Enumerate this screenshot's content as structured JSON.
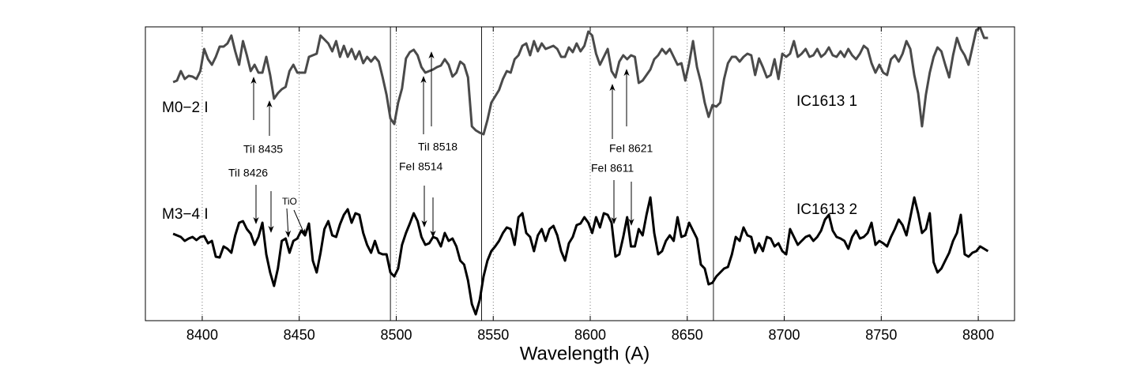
{
  "chart_data": {
    "type": "line",
    "xlabel": "Wavelength (A)",
    "xlim": [
      8370.7,
      8818.7
    ],
    "xticks": [
      8400,
      8450,
      8500,
      8550,
      8600,
      8650,
      8700,
      8750,
      8800
    ],
    "ylim": [
      0,
      372
    ],
    "grid": true,
    "reference_lines": [
      8497,
      8544,
      8663.5
    ],
    "annotations": [
      "M0−2 I",
      "M3−4 I",
      "IC1613 1",
      "IC1613 2",
      "TiI 8435",
      "TiI 8426",
      "TiO",
      "TiI 8518",
      "FeI 8514",
      "FeI 8621",
      "FeI 8611"
    ],
    "x": [
      8385,
      8387,
      8389,
      8391,
      8393,
      8395,
      8397,
      8399,
      8401,
      8403,
      8405,
      8407,
      8409,
      8411,
      8413,
      8415,
      8417,
      8419,
      8421,
      8423,
      8425,
      8427,
      8429,
      8431,
      8433,
      8435,
      8437,
      8439,
      8441,
      8443,
      8445,
      8447,
      8449,
      8451,
      8453,
      8455,
      8457,
      8459,
      8461,
      8463,
      8465,
      8467,
      8469,
      8471,
      8473,
      8475,
      8477,
      8479,
      8481,
      8483,
      8485,
      8487,
      8489,
      8491,
      8493,
      8495,
      8497,
      8499,
      8501,
      8503,
      8505,
      8507,
      8509,
      8511,
      8513,
      8515,
      8517,
      8519,
      8521,
      8523,
      8525,
      8527,
      8529,
      8531,
      8533,
      8535,
      8537,
      8539,
      8541,
      8543,
      8545,
      8547,
      8549,
      8551,
      8553,
      8555,
      8557,
      8559,
      8561,
      8563,
      8565,
      8567,
      8569,
      8571,
      8573,
      8575,
      8577,
      8579,
      8581,
      8583,
      8585,
      8587,
      8589,
      8591,
      8593,
      8595,
      8597,
      8599,
      8601,
      8603,
      8605,
      8607,
      8609,
      8611,
      8613,
      8615,
      8617,
      8619,
      8621,
      8623,
      8625,
      8627,
      8629,
      8631,
      8633,
      8635,
      8637,
      8639,
      8641,
      8643,
      8645,
      8647,
      8649,
      8651,
      8653,
      8655,
      8657,
      8659,
      8661,
      8663,
      8665,
      8667,
      8669,
      8671,
      8673,
      8675,
      8677,
      8679,
      8681,
      8683,
      8685,
      8687,
      8689,
      8691,
      8693,
      8695,
      8697,
      8699,
      8701,
      8703,
      8705,
      8707,
      8709,
      8711,
      8713,
      8715,
      8717,
      8719,
      8721,
      8723,
      8725,
      8727,
      8729,
      8731,
      8733,
      8735,
      8737,
      8739,
      8741,
      8743,
      8745,
      8747,
      8749,
      8751,
      8753,
      8755,
      8757,
      8759,
      8761,
      8763,
      8765,
      8767,
      8769,
      8771,
      8773,
      8775,
      8777,
      8779,
      8781,
      8783,
      8785,
      8787,
      8789,
      8791,
      8793,
      8795,
      8797,
      8799,
      8801,
      8803,
      8805
    ],
    "series": [
      {
        "color": "#4a4a4a",
        "values": [
          302,
          304,
          316,
          306,
          310,
          309,
          306,
          316,
          344,
          331,
          324,
          334,
          347,
          347,
          351,
          361,
          341,
          324,
          354,
          336,
          316,
          324,
          314,
          314,
          334,
          311,
          281,
          288,
          293,
          296,
          316,
          324,
          314,
          314,
          314,
          334,
          336,
          338,
          361,
          356,
          351,
          341,
          354,
          334,
          348,
          334,
          344,
          331,
          341,
          326,
          334,
          328,
          334,
          328,
          308,
          286,
          256,
          249,
          276,
          294,
          332,
          340,
          343,
          336,
          321,
          314,
          316,
          318,
          321,
          323,
          331,
          324,
          309,
          314,
          328,
          324,
          308,
          246,
          241,
          238,
          236,
          254,
          276,
          284,
          292,
          306,
          316,
          314,
          331,
          336,
          348,
          351,
          336,
          354,
          341,
          351,
          344,
          346,
          348,
          344,
          334,
          334,
          346,
          340,
          351,
          341,
          348,
          366,
          361,
          338,
          324,
          334,
          344,
          316,
          308,
          328,
          336,
          331,
          336,
          334,
          301,
          304,
          311,
          318,
          331,
          336,
          344,
          338,
          344,
          334,
          324,
          326,
          304,
          326,
          354,
          321,
          302,
          276,
          258,
          273,
          271,
          276,
          306,
          326,
          334,
          334,
          328,
          334,
          338,
          336,
          311,
          332,
          321,
          308,
          311,
          331,
          306,
          338,
          334,
          338,
          354,
          334,
          338,
          344,
          334,
          336,
          344,
          334,
          338,
          346,
          336,
          334,
          341,
          334,
          344,
          336,
          331,
          338,
          348,
          344,
          326,
          314,
          324,
          314,
          311,
          331,
          336,
          328,
          338,
          354,
          344,
          311,
          288,
          246,
          286,
          314,
          334,
          346,
          341,
          324,
          308,
          336,
          358,
          344,
          336,
          324,
          346,
          368,
          371,
          358,
          358
        ]
      },
      {
        "color": "#000000",
        "values": [
          110,
          108,
          106,
          101,
          104,
          106,
          102,
          106,
          107,
          98,
          101,
          81,
          80,
          94,
          91,
          86,
          108,
          124,
          126,
          116,
          110,
          96,
          106,
          124,
          84,
          61,
          44,
          66,
          101,
          104,
          86,
          101,
          104,
          114,
          108,
          123,
          76,
          61,
          86,
          116,
          126,
          108,
          106,
          122,
          134,
          141,
          124,
          136,
          134,
          111,
          96,
          86,
          101,
          86,
          84,
          84,
          61,
          56,
          66,
          96,
          111,
          123,
          136,
          126,
          106,
          96,
          98,
          106,
          104,
          94,
          111,
          101,
          104,
          94,
          76,
          71,
          51,
          21,
          8,
          26,
          56,
          76,
          88,
          94,
          101,
          111,
          118,
          116,
          96,
          131,
          136,
          111,
          106,
          88,
          108,
          116,
          101,
          116,
          120,
          108,
          88,
          76,
          98,
          106,
          121,
          123,
          131,
          124,
          111,
          131,
          118,
          136,
          134,
          124,
          81,
          84,
          106,
          131,
          94,
          94,
          116,
          108,
          134,
          156,
          111,
          84,
          88,
          101,
          108,
          101,
          131,
          106,
          108,
          124,
          114,
          104,
          71,
          66,
          46,
          48,
          56,
          61,
          66,
          68,
          84,
          106,
          101,
          118,
          108,
          106,
          86,
          98,
          88,
          106,
          104,
          94,
          98,
          88,
          84,
          116,
          106,
          96,
          101,
          106,
          108,
          101,
          106,
          114,
          128,
          134,
          114,
          106,
          104,
          101,
          91,
          106,
          114,
          104,
          106,
          111,
          124,
          96,
          101,
          98,
          94,
          106,
          116,
          128,
          121,
          108,
          131,
          156,
          136,
          111,
          116,
          136,
          74,
          61,
          66,
          76,
          86,
          101,
          111,
          134,
          84,
          81,
          86,
          88,
          94,
          91,
          88
        ]
      }
    ]
  }
}
